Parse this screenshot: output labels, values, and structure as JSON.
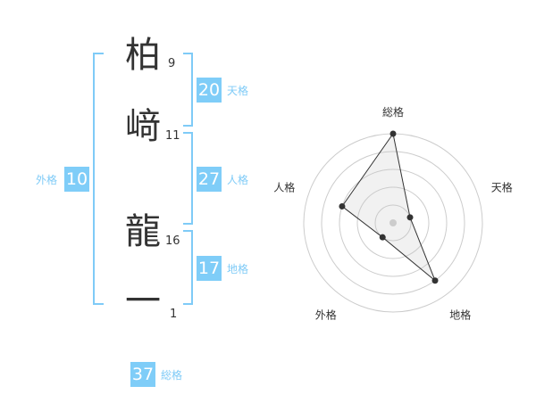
{
  "name": [
    {
      "char": "柏",
      "strokes": "9"
    },
    {
      "char": "﨑",
      "strokes": "11"
    },
    {
      "char": "龍",
      "strokes": "16"
    },
    {
      "char": "一",
      "strokes": "1"
    }
  ],
  "fortunes": {
    "tenkaku": {
      "value": "20",
      "label": "天格"
    },
    "jinkaku": {
      "value": "27",
      "label": "人格"
    },
    "chikaku": {
      "value": "17",
      "label": "地格"
    },
    "gaikaku": {
      "value": "10",
      "label": "外格"
    },
    "soukaku": {
      "value": "37",
      "label": "総格"
    }
  },
  "colors": {
    "accent": "#7fcdf8",
    "text": "#333333"
  },
  "chart_data": {
    "type": "radar",
    "axes": [
      "総格",
      "天格",
      "地格",
      "外格",
      "人格"
    ],
    "values": [
      5,
      1,
      4,
      1,
      3
    ],
    "range": [
      0,
      5
    ],
    "rings": 5
  }
}
